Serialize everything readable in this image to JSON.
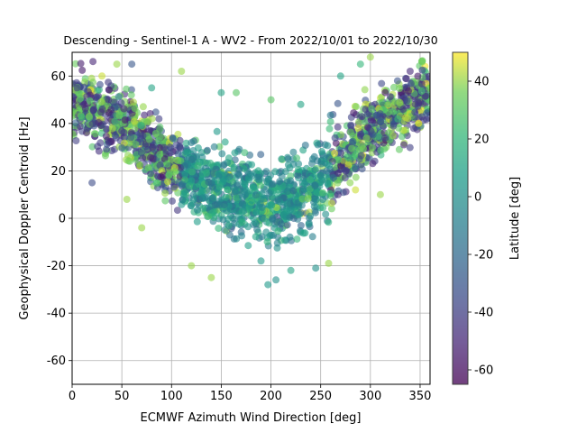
{
  "chart_data": {
    "type": "scatter",
    "title": "Descending - Sentinel-1 A - WV2 - From 2022/10/01 to 2022/10/30",
    "xlabel": "ECMWF Azimuth Wind Direction [deg]",
    "ylabel": "Geophysical Doppler Centroid [Hz]",
    "xlim": [
      0,
      360
    ],
    "ylim": [
      -70,
      70
    ],
    "xticks": [
      0,
      50,
      100,
      150,
      200,
      250,
      300,
      350
    ],
    "yticks": [
      -60,
      -40,
      -20,
      0,
      20,
      40,
      60
    ],
    "grid": true,
    "point_alpha": 0.6,
    "colorbar": {
      "label": "Latitude [deg]",
      "range": [
        -65,
        50
      ],
      "ticks": [
        -60,
        -40,
        -20,
        0,
        20,
        40
      ],
      "colormap": "viridis"
    },
    "trend": {
      "shape": "V",
      "description_points": [
        {
          "x": 0,
          "y": 50
        },
        {
          "x": 50,
          "y": 40
        },
        {
          "x": 100,
          "y": 22
        },
        {
          "x": 150,
          "y": 12
        },
        {
          "x": 200,
          "y": 5
        },
        {
          "x": 250,
          "y": 15
        },
        {
          "x": 300,
          "y": 38
        },
        {
          "x": 350,
          "y": 50
        },
        {
          "x": 360,
          "y": 52
        }
      ]
    },
    "points": [
      {
        "x": 5,
        "y": 55,
        "lat": -40
      },
      {
        "x": 12,
        "y": 48,
        "lat": -50
      },
      {
        "x": 20,
        "y": 15,
        "lat": -35
      },
      {
        "x": 30,
        "y": 60,
        "lat": 45
      },
      {
        "x": 45,
        "y": 65,
        "lat": 40
      },
      {
        "x": 60,
        "y": 65,
        "lat": -30
      },
      {
        "x": 70,
        "y": -4,
        "lat": 40
      },
      {
        "x": 55,
        "y": 8,
        "lat": 40
      },
      {
        "x": 80,
        "y": 55,
        "lat": 10
      },
      {
        "x": 110,
        "y": 62,
        "lat": 40
      },
      {
        "x": 120,
        "y": -20,
        "lat": 40
      },
      {
        "x": 140,
        "y": -25,
        "lat": 40
      },
      {
        "x": 150,
        "y": 53,
        "lat": 10
      },
      {
        "x": 165,
        "y": 53,
        "lat": 30
      },
      {
        "x": 190,
        "y": -18,
        "lat": 5
      },
      {
        "x": 197,
        "y": -28,
        "lat": 5
      },
      {
        "x": 205,
        "y": -26,
        "lat": 0
      },
      {
        "x": 220,
        "y": -22,
        "lat": 10
      },
      {
        "x": 245,
        "y": -21,
        "lat": 0
      },
      {
        "x": 258,
        "y": -19,
        "lat": 40
      },
      {
        "x": 200,
        "y": 50,
        "lat": 30
      },
      {
        "x": 230,
        "y": 48,
        "lat": 10
      },
      {
        "x": 270,
        "y": 60,
        "lat": 10
      },
      {
        "x": 290,
        "y": 65,
        "lat": 20
      },
      {
        "x": 310,
        "y": 10,
        "lat": 40
      },
      {
        "x": 285,
        "y": 12,
        "lat": 45
      },
      {
        "x": 340,
        "y": 62,
        "lat": -50
      },
      {
        "x": 352,
        "y": 66,
        "lat": 35
      },
      {
        "x": 300,
        "y": 68,
        "lat": 40
      }
    ]
  }
}
